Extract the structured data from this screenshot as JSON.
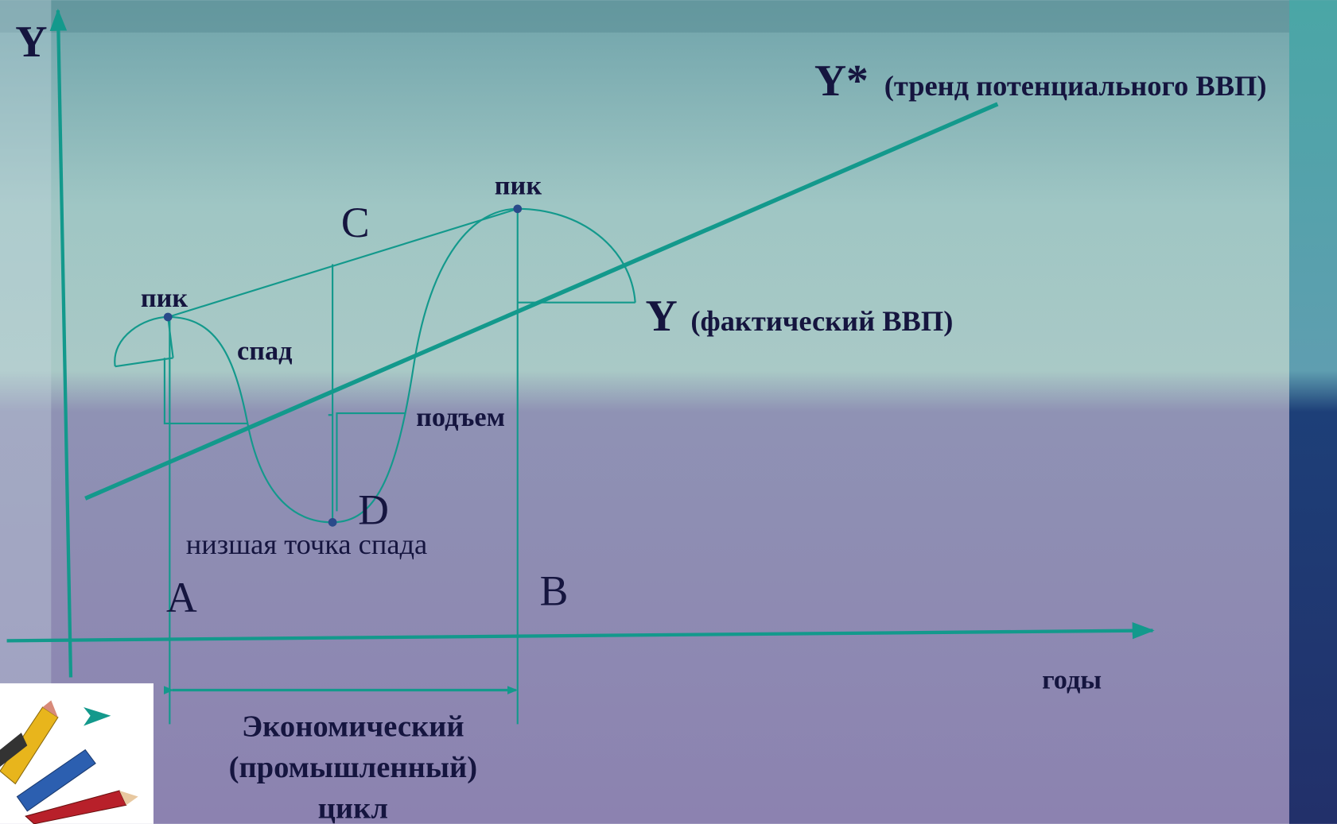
{
  "axes": {
    "y_label": "Y",
    "x_label": "годы"
  },
  "trend": {
    "symbol": "Y*",
    "label": "(тренд потенциального ВВП)"
  },
  "actual": {
    "symbol": "Y",
    "label": "(фактический ВВП)"
  },
  "points": {
    "peak_left": "пик",
    "peak_right": "пик",
    "c": "C",
    "d": "D",
    "trough": "низшая точка спада",
    "a": "A",
    "b": "B"
  },
  "phases": {
    "recession": "спад",
    "recovery": "подъем"
  },
  "cycle": {
    "lines": [
      "Экономический",
      "(промышленный)",
      "цикл"
    ]
  }
}
